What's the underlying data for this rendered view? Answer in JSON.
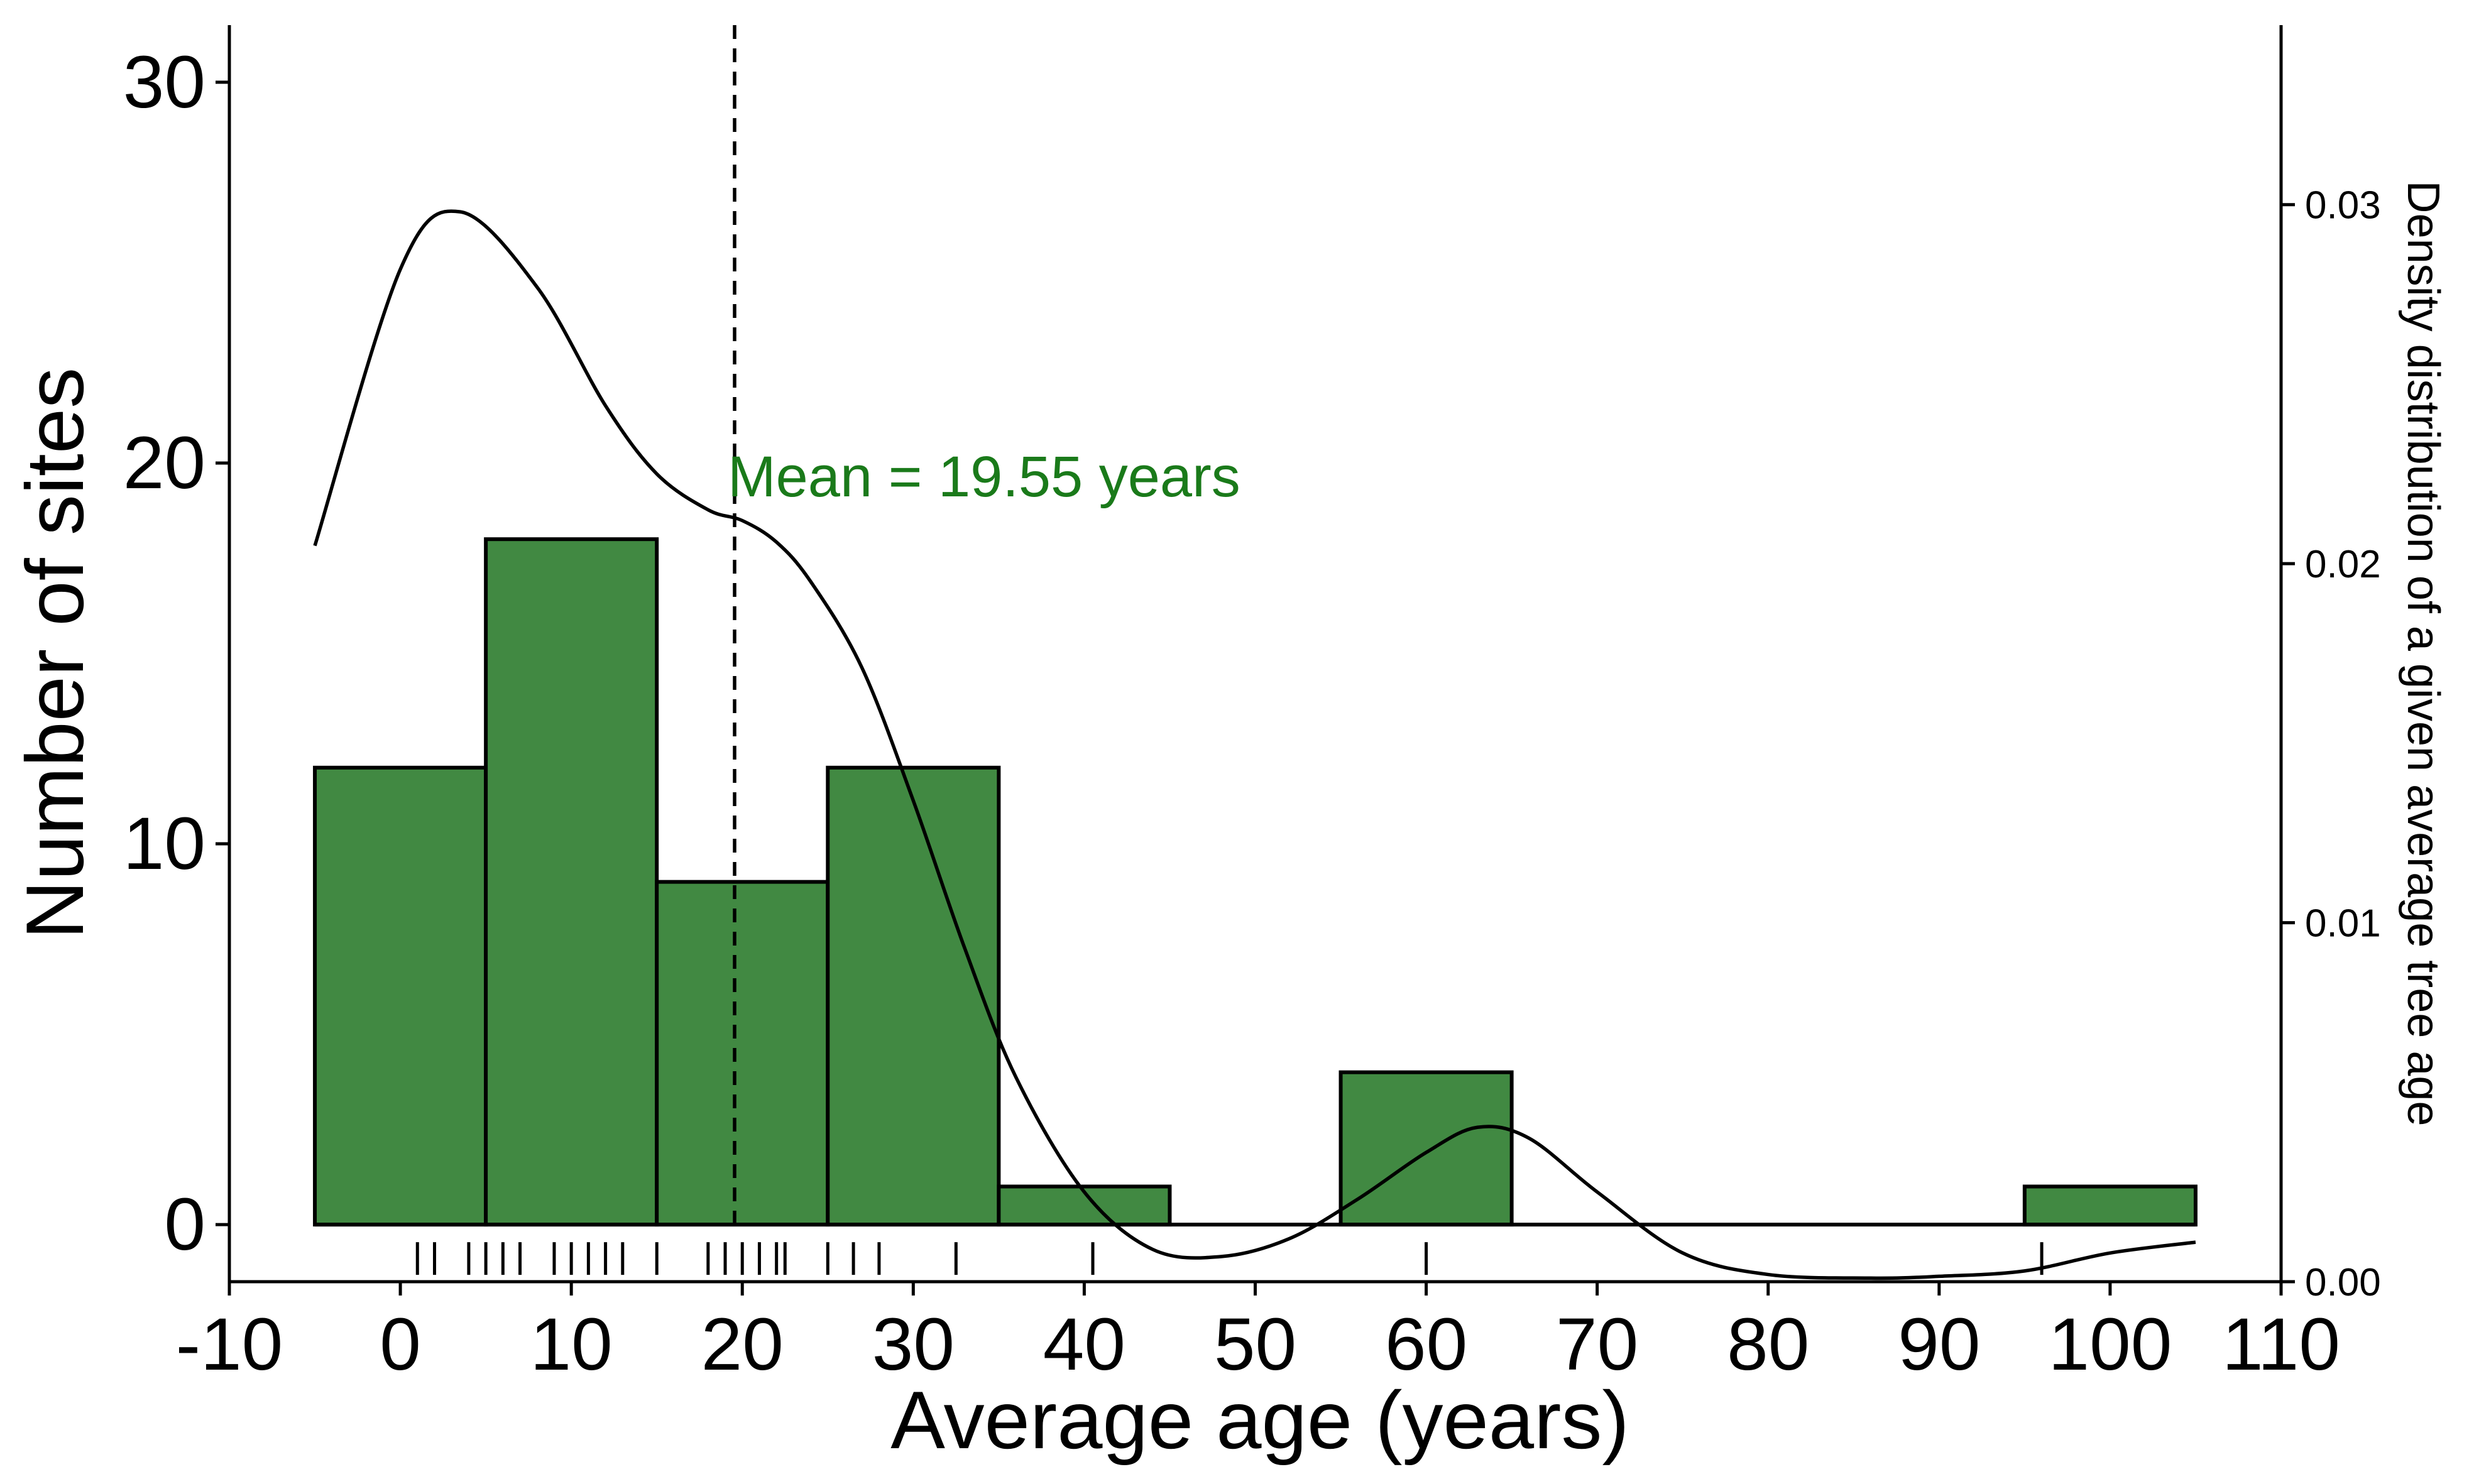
{
  "chart_data": {
    "type": "bar",
    "subtype": "histogram",
    "xlabel": "Average age (years)",
    "ylabel": "Number of sites",
    "y2label": "Density distribution of a given average tree age",
    "xlim": [
      -10,
      110
    ],
    "ylim": [
      -1.5,
      31.5
    ],
    "y2lim": [
      0,
      0.035
    ],
    "x_ticks": [
      "-10",
      "0",
      "10",
      "20",
      "30",
      "40",
      "50",
      "60",
      "70",
      "80",
      "90",
      "100",
      "110"
    ],
    "y_ticks": [
      "0",
      "10",
      "20",
      "30"
    ],
    "y2_ticks": [
      "0.00",
      "0.01",
      "0.02",
      "0.03"
    ],
    "bins": [
      {
        "start": -5,
        "end": 5,
        "count": 12
      },
      {
        "start": 5,
        "end": 15,
        "count": 18
      },
      {
        "start": 15,
        "end": 25,
        "count": 9
      },
      {
        "start": 25,
        "end": 35,
        "count": 12
      },
      {
        "start": 35,
        "end": 45,
        "count": 1
      },
      {
        "start": 45,
        "end": 55,
        "count": 0
      },
      {
        "start": 55,
        "end": 65,
        "count": 4
      },
      {
        "start": 65,
        "end": 75,
        "count": 0
      },
      {
        "start": 75,
        "end": 85,
        "count": 0
      },
      {
        "start": 85,
        "end": 95,
        "count": 0
      },
      {
        "start": 95,
        "end": 105,
        "count": 1
      }
    ],
    "rug": [
      1,
      2,
      4,
      5,
      6,
      7,
      9,
      10,
      11,
      12,
      13,
      15,
      18,
      19,
      20,
      21,
      22,
      22.5,
      25,
      26.5,
      28,
      32.5,
      40.5,
      60,
      96
    ],
    "density": {
      "x": [
        -5,
        0,
        3.5,
        8,
        12,
        15,
        18,
        20,
        22,
        24,
        27,
        30,
        33,
        36,
        40,
        44,
        48,
        52,
        56,
        60,
        63,
        66,
        70,
        75,
        80,
        86,
        90,
        95,
        100,
        105
      ],
      "y": [
        0.0205,
        0.0282,
        0.0298,
        0.0277,
        0.0244,
        0.0225,
        0.0215,
        0.0212,
        0.0206,
        0.0195,
        0.0171,
        0.0134,
        0.0093,
        0.0057,
        0.0025,
        0.0009,
        0.0007,
        0.0012,
        0.0023,
        0.0036,
        0.0043,
        0.004,
        0.0025,
        0.0008,
        0.0002,
        0.0001,
        0.00015,
        0.0003,
        0.0008,
        0.0011
      ]
    },
    "mean": 19.55,
    "mean_label": "Mean = 19.55 years",
    "grid": false,
    "legend": "none",
    "colors": {
      "bar_fill": "#418942",
      "annotation": "#1a7a1a",
      "line": "#000000"
    }
  }
}
